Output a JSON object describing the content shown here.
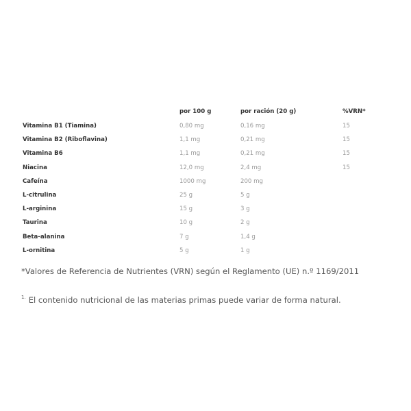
{
  "table": {
    "headers": [
      "",
      "por 100 g",
      "por ración (20 g)",
      "%VRN*"
    ],
    "rows": [
      [
        "Vitamina B1 (Tiamina)",
        "0,80 mg",
        "0,16 mg",
        "15"
      ],
      [
        "Vitamina B2 (Riboflavina)",
        "1,1 mg",
        "0,21 mg",
        "15"
      ],
      [
        "Vitamina B6",
        "1,1 mg",
        "0,21 mg",
        "15"
      ],
      [
        "Niacina",
        "12,0 mg",
        "2,4 mg",
        "15"
      ],
      [
        "Cafeína",
        "1000 mg",
        "200 mg",
        ""
      ],
      [
        "L-citrulina",
        "25 g",
        "5 g",
        ""
      ],
      [
        "L-arginina",
        "15 g",
        "3 g",
        ""
      ],
      [
        "Taurina",
        "10 g",
        "2 g",
        ""
      ],
      [
        "Beta-alanina",
        "7 g",
        "1,4 g",
        ""
      ],
      [
        "L-ornitina",
        "5 g",
        "1 g",
        ""
      ]
    ]
  },
  "footnotes": {
    "vrn": "*Valores de Referencia de Nutrientes (VRN) según el Reglamento (UE) n.º 1169/2011",
    "marker": "1.",
    "natural": "El contenido nutricional de las materias primas puede variar de forma natural."
  }
}
